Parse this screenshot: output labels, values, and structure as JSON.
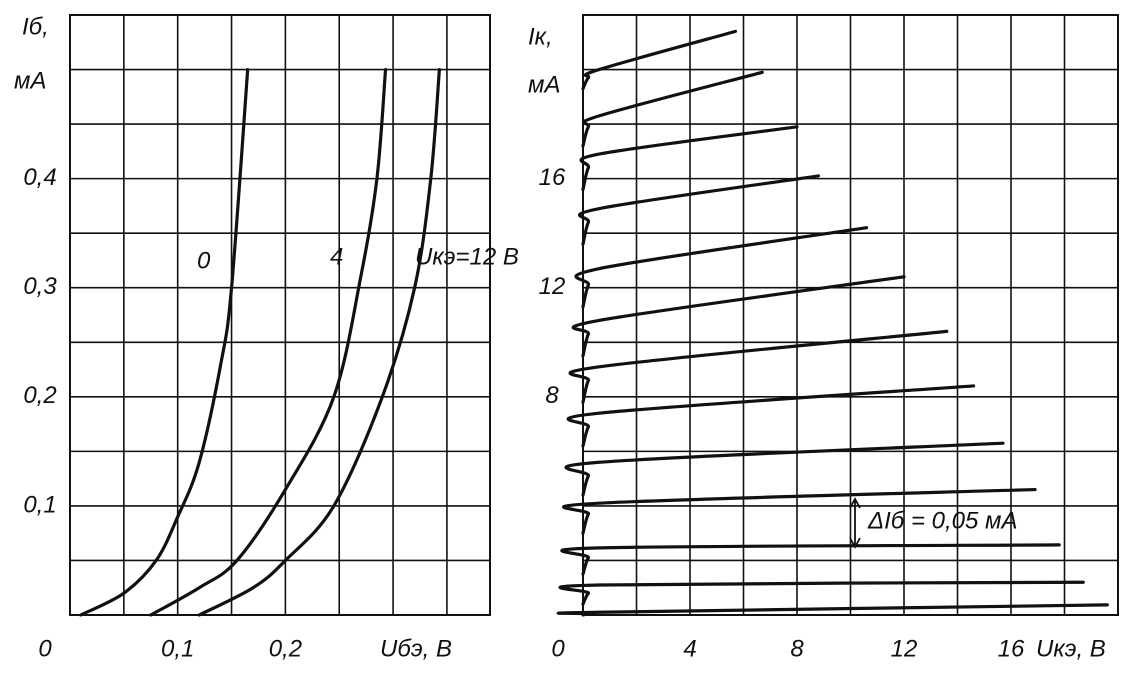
{
  "chart_data": [
    {
      "type": "line",
      "ylabel": [
        "Iб,",
        "мА"
      ],
      "xlabel": "Uбэ, В",
      "xlim": [
        0,
        0.39
      ],
      "ylim": [
        0,
        0.55
      ],
      "xticks": [
        0,
        {
          "value": 0.1,
          "label": "0,1"
        },
        {
          "value": 0.2,
          "label": "0,2"
        }
      ],
      "yticks": [
        {
          "value": 0.1,
          "label": "0,1"
        },
        {
          "value": 0.2,
          "label": "0,2"
        },
        {
          "value": 0.3,
          "label": "0,3"
        },
        {
          "value": 0.4,
          "label": "0,4"
        }
      ],
      "xgrid": [
        0.05,
        0.1,
        0.15,
        0.2,
        0.25,
        0.3,
        0.35
      ],
      "ygrid": [
        0.05,
        0.1,
        0.15,
        0.2,
        0.25,
        0.3,
        0.35,
        0.4,
        0.45,
        0.5
      ],
      "grid": true,
      "color": "#111111",
      "series": [
        {
          "name": "0",
          "x": [
            0.01,
            0.05,
            0.08,
            0.1,
            0.12,
            0.14,
            0.15,
            0.165
          ],
          "values": [
            0,
            0.02,
            0.05,
            0.09,
            0.14,
            0.23,
            0.3,
            0.5
          ]
        },
        {
          "name": "4",
          "x": [
            0.075,
            0.12,
            0.155,
            0.2,
            0.245,
            0.27,
            0.285,
            0.293
          ],
          "values": [
            0,
            0.025,
            0.05,
            0.115,
            0.2,
            0.31,
            0.4,
            0.5
          ]
        },
        {
          "name": "Uкэ=12 В",
          "x": [
            0.12,
            0.17,
            0.2,
            0.245,
            0.29,
            0.32,
            0.335,
            0.343
          ],
          "values": [
            0,
            0.025,
            0.05,
            0.1,
            0.2,
            0.3,
            0.4,
            0.5
          ]
        }
      ]
    },
    {
      "type": "line",
      "ylabel": [
        "Iк,",
        "мА"
      ],
      "xlabel": "Uкэ, В",
      "annotation": "ΔIб = 0,05 мА",
      "xlim": [
        0,
        20
      ],
      "ylim": [
        0,
        22
      ],
      "xticks": [
        0,
        4,
        8,
        12,
        16
      ],
      "yticks": [
        8,
        12,
        16
      ],
      "xgrid": [
        2,
        4,
        6,
        8,
        10,
        12,
        14,
        16,
        18
      ],
      "ygrid": [
        2,
        4,
        6,
        8,
        10,
        12,
        14,
        16,
        18,
        20
      ],
      "grid": true,
      "color": "#111111",
      "series": [
        {
          "x": [
            0,
            0.2,
            0.6,
            19.6
          ],
          "values": [
            0,
            0.05,
            0.1,
            0.37
          ]
        },
        {
          "x": [
            0,
            0.2,
            0.6,
            18.7
          ],
          "values": [
            0.4,
            0.8,
            1.1,
            1.2
          ]
        },
        {
          "x": [
            0,
            0.2,
            0.6,
            17.8
          ],
          "values": [
            1.5,
            2.1,
            2.46,
            2.57
          ]
        },
        {
          "x": [
            0,
            0.2,
            0.6,
            16.9
          ],
          "values": [
            3,
            3.7,
            4.1,
            4.6
          ]
        },
        {
          "x": [
            0,
            0.2,
            0.6,
            15.7
          ],
          "values": [
            4.4,
            5.1,
            5.6,
            6.3
          ]
        },
        {
          "x": [
            0,
            0.2,
            0.6,
            14.6
          ],
          "values": [
            6.2,
            6.9,
            7.4,
            8.4
          ]
        },
        {
          "x": [
            0,
            0.2,
            0.6,
            13.6
          ],
          "values": [
            7.8,
            8.6,
            9.1,
            10.4
          ]
        },
        {
          "x": [
            0,
            0.2,
            0.6,
            12.0
          ],
          "values": [
            9.5,
            10.3,
            10.8,
            12.4
          ]
        },
        {
          "x": [
            0,
            0.2,
            0.6,
            10.6
          ],
          "values": [
            11.3,
            12.1,
            12.7,
            14.2
          ]
        },
        {
          "x": [
            0,
            0.2,
            0.6,
            8.8
          ],
          "values": [
            13.6,
            14.4,
            14.9,
            16.1
          ]
        },
        {
          "x": [
            0,
            0.2,
            0.6,
            8.0
          ],
          "values": [
            15.6,
            16.4,
            16.9,
            17.9
          ]
        },
        {
          "x": [
            0,
            0.2,
            0.6,
            6.7
          ],
          "values": [
            17.2,
            17.9,
            18.3,
            19.9
          ]
        },
        {
          "x": [
            0,
            0.2,
            0.6,
            5.7
          ],
          "values": [
            19.3,
            19.7,
            20.0,
            21.4
          ]
        }
      ]
    }
  ]
}
